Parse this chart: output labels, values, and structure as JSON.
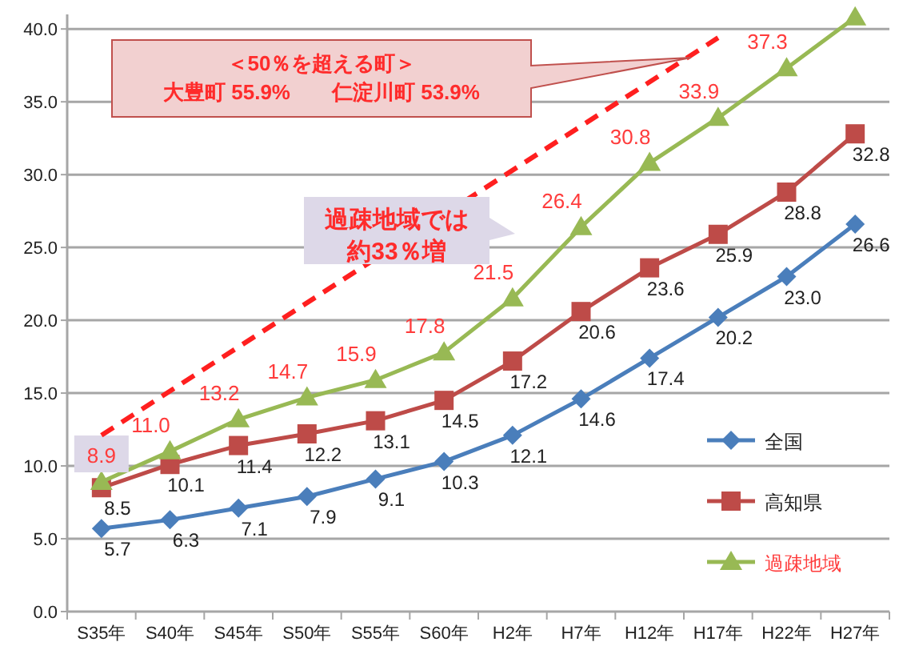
{
  "chart_data": {
    "type": "line",
    "categories": [
      "S35年",
      "S40年",
      "S45年",
      "S50年",
      "S55年",
      "S60年",
      "H2年",
      "H7年",
      "H12年",
      "H17年",
      "H22年",
      "H27年"
    ],
    "ylim": [
      0,
      41
    ],
    "yticks": [
      {
        "value": 0,
        "label": "0.0"
      },
      {
        "value": 5,
        "label": "5.0"
      },
      {
        "value": 10,
        "label": "10.0"
      },
      {
        "value": 15,
        "label": "15.0"
      },
      {
        "value": 20,
        "label": "20.0"
      },
      {
        "value": 25,
        "label": "25.0"
      },
      {
        "value": 30,
        "label": "30.0"
      },
      {
        "value": 35,
        "label": "35.0"
      },
      {
        "value": 40,
        "label": "40.0"
      }
    ],
    "grid": "y",
    "legend": "right",
    "series": [
      {
        "name": "全国",
        "color": "#4a7ebb",
        "marker": "diamond",
        "values": [
          5.7,
          6.3,
          7.1,
          7.9,
          9.1,
          10.3,
          12.1,
          14.6,
          17.4,
          20.2,
          23.0,
          26.6
        ],
        "value_labels": [
          "5.7",
          "6.3",
          "7.1",
          "7.9",
          "9.1",
          "10.3",
          "12.1",
          "14.6",
          "17.4",
          "20.2",
          "23.0",
          "26.6"
        ]
      },
      {
        "name": "高知県",
        "color": "#be4b48",
        "marker": "square",
        "values": [
          8.5,
          10.1,
          11.4,
          12.2,
          13.1,
          14.5,
          17.2,
          20.6,
          23.6,
          25.9,
          28.8,
          32.8
        ],
        "value_labels": [
          "8.5",
          "10.1",
          "11.4",
          "12.2",
          "13.1",
          "14.5",
          "17.2",
          "20.6",
          "23.6",
          "25.9",
          "28.8",
          "32.8"
        ]
      },
      {
        "name": "過疎地域",
        "color": "#98b954",
        "marker": "triangle",
        "values": [
          8.9,
          11.0,
          13.2,
          14.7,
          15.9,
          17.8,
          21.5,
          26.4,
          30.8,
          33.9,
          37.3,
          40.8
        ],
        "value_labels": [
          "8.9",
          "11.0",
          "13.2",
          "14.7",
          "15.9",
          "17.8",
          "21.5",
          "26.4",
          "30.8",
          "33.9",
          "37.3",
          null
        ]
      },
      {
        "color": "#ff1f1f",
        "line_style": "dashed",
        "marker": "none",
        "x": [
          "S35年",
          "H17年"
        ],
        "values": [
          12.1,
          39.4
        ]
      }
    ],
    "annotations": [
      "＜50％を超える町＞",
      "大豊町 55.9%　　仁淀川町 53.9%",
      "過疎地域では",
      "約33％増"
    ]
  }
}
